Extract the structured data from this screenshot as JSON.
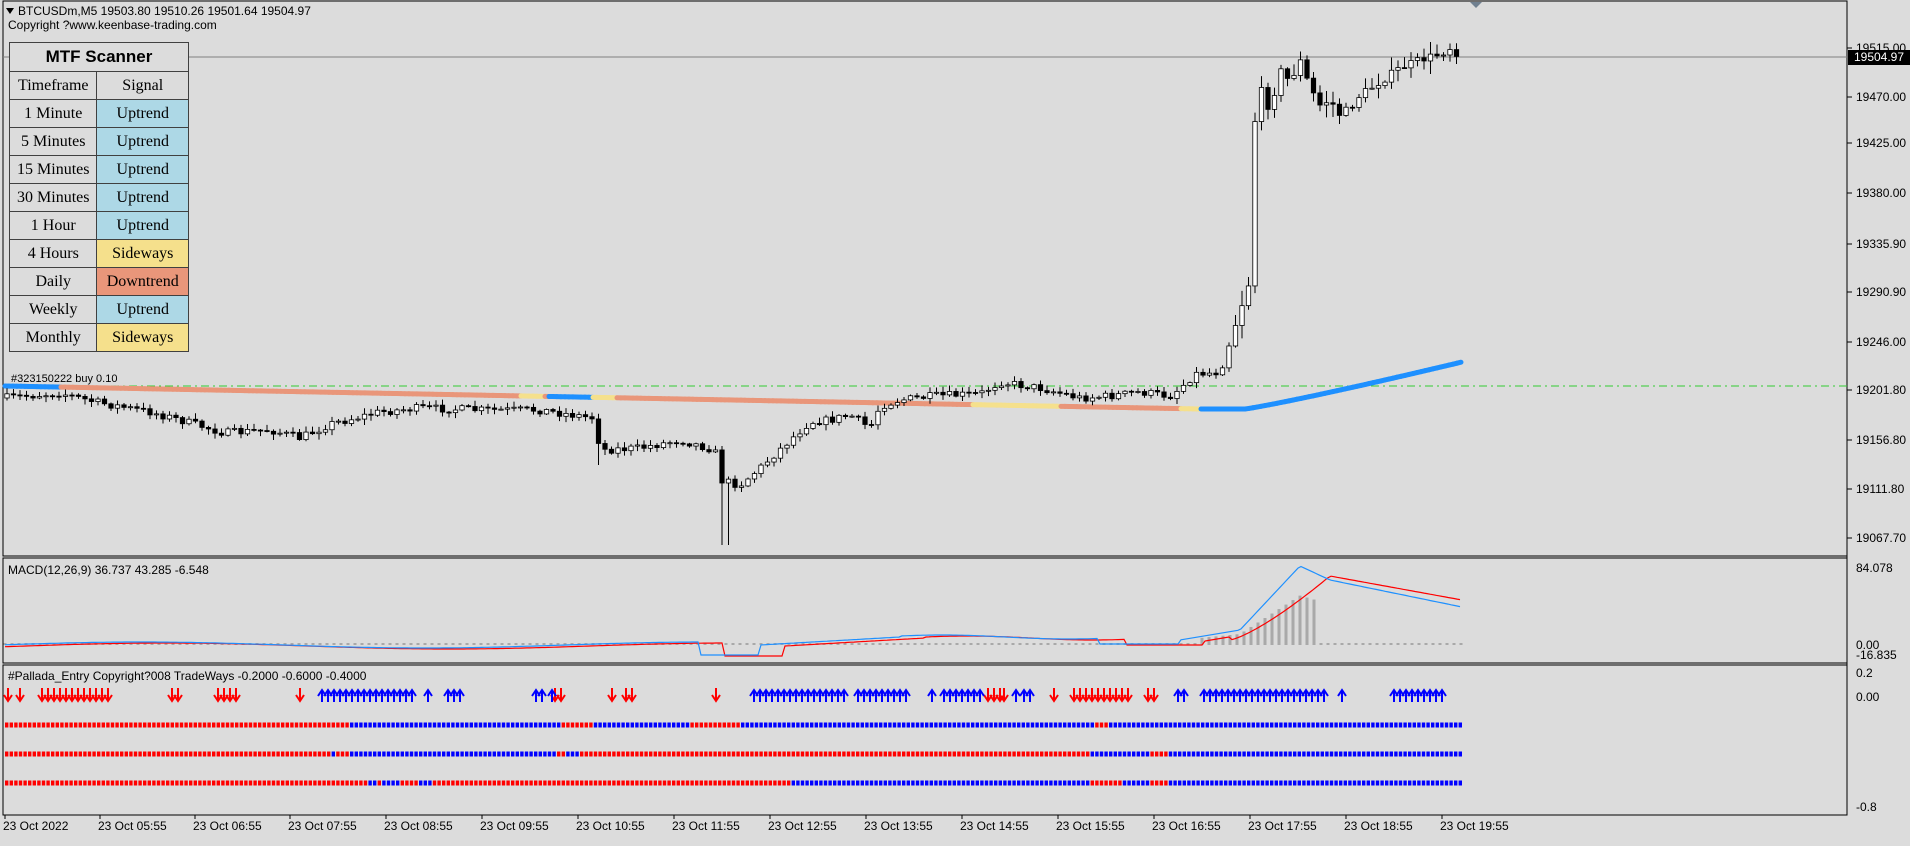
{
  "chart_header": {
    "symbol_info": "BTCUSDm,M5  19503.80 19510.26 19501.64 19504.97",
    "copyright": "Copyright ?www.keenbase-trading.com"
  },
  "scanner": {
    "title": "MTF Scanner",
    "col_timeframe": "Timeframe",
    "col_signal": "Signal",
    "rows": [
      {
        "timeframe": "1 Minute",
        "signal": "Uptrend",
        "color": "#add8e6"
      },
      {
        "timeframe": "5 Minutes",
        "signal": "Uptrend",
        "color": "#add8e6"
      },
      {
        "timeframe": "15 Minutes",
        "signal": "Uptrend",
        "color": "#add8e6"
      },
      {
        "timeframe": "30 Minutes",
        "signal": "Uptrend",
        "color": "#add8e6"
      },
      {
        "timeframe": "1 Hour",
        "signal": "Uptrend",
        "color": "#add8e6"
      },
      {
        "timeframe": "4 Hours",
        "signal": "Sideways",
        "color": "#f5e08c"
      },
      {
        "timeframe": "Daily",
        "signal": "Downtrend",
        "color": "#e9967a"
      },
      {
        "timeframe": "Weekly",
        "signal": "Uptrend",
        "color": "#add8e6"
      },
      {
        "timeframe": "Monthly",
        "signal": "Sideways",
        "color": "#f5e08c"
      }
    ]
  },
  "trade_label": "#323150222 buy 0.10",
  "macd_label": "MACD(12,26,9) 36.737 43.285 -6.548",
  "pallada_label": "#Pallada_Entry Copyright?008 TradeWays -0.2000 -0.6000 -0.4000",
  "current_price_tag": "19504.97",
  "price_ticks": [
    "19515.00",
    "19470.00",
    "19425.00",
    "19380.00",
    "19335.90",
    "19290.90",
    "19246.00",
    "19201.80",
    "19156.80",
    "19111.80",
    "19067.70"
  ],
  "macd_ticks": [
    "84.078",
    "0.00",
    "-16.835"
  ],
  "pallada_ticks": [
    "0.2",
    "0.00",
    "-0.8"
  ],
  "time_ticks": [
    "23 Oct 2022",
    "23 Oct 05:55",
    "23 Oct 06:55",
    "23 Oct 07:55",
    "23 Oct 08:55",
    "23 Oct 09:55",
    "23 Oct 10:55",
    "23 Oct 11:55",
    "23 Oct 12:55",
    "23 Oct 13:55",
    "23 Oct 14:55",
    "23 Oct 15:55",
    "23 Oct 16:55",
    "23 Oct 17:55",
    "23 Oct 18:55",
    "23 Oct 19:55"
  ],
  "colors": {
    "background": "#dcdcdc",
    "up_arrow": "#0000ff",
    "down_arrow": "#ff0000",
    "ma_up": "#1e90ff",
    "ma_down": "#e9967a",
    "ma_flat": "#f5e08c",
    "macd_line": "#1e90ff",
    "signal_line": "#ff0000",
    "histogram": "#a9a9a9"
  }
}
